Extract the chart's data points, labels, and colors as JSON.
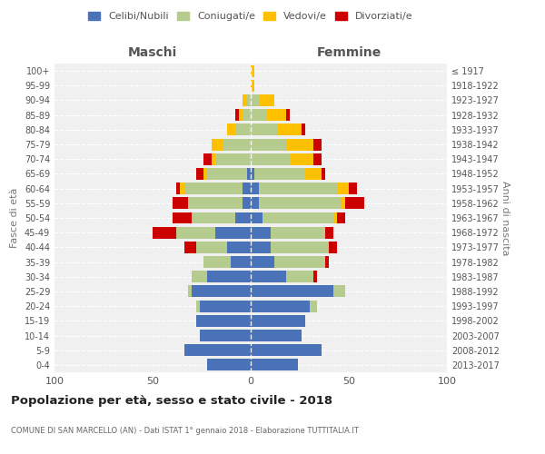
{
  "age_groups": [
    "0-4",
    "5-9",
    "10-14",
    "15-19",
    "20-24",
    "25-29",
    "30-34",
    "35-39",
    "40-44",
    "45-49",
    "50-54",
    "55-59",
    "60-64",
    "65-69",
    "70-74",
    "75-79",
    "80-84",
    "85-89",
    "90-94",
    "95-99",
    "100+"
  ],
  "birth_years": [
    "2013-2017",
    "2008-2012",
    "2003-2007",
    "1998-2002",
    "1993-1997",
    "1988-1992",
    "1983-1987",
    "1978-1982",
    "1973-1977",
    "1968-1972",
    "1963-1967",
    "1958-1962",
    "1953-1957",
    "1948-1952",
    "1943-1947",
    "1938-1942",
    "1933-1937",
    "1928-1932",
    "1923-1927",
    "1918-1922",
    "≤ 1917"
  ],
  "maschi": {
    "celibi": [
      22,
      34,
      26,
      28,
      26,
      30,
      22,
      10,
      12,
      18,
      8,
      4,
      4,
      2,
      0,
      0,
      0,
      0,
      0,
      0,
      0
    ],
    "coniugati": [
      0,
      0,
      0,
      0,
      2,
      2,
      8,
      14,
      16,
      20,
      22,
      28,
      30,
      20,
      18,
      14,
      8,
      4,
      2,
      0,
      0
    ],
    "vedovi": [
      0,
      0,
      0,
      0,
      0,
      0,
      0,
      0,
      0,
      0,
      0,
      0,
      2,
      2,
      2,
      6,
      4,
      2,
      2,
      0,
      0
    ],
    "divorziati": [
      0,
      0,
      0,
      0,
      0,
      0,
      0,
      0,
      6,
      12,
      10,
      8,
      2,
      4,
      4,
      0,
      0,
      2,
      0,
      0,
      0
    ]
  },
  "femmine": {
    "nubili": [
      24,
      36,
      26,
      28,
      30,
      42,
      18,
      12,
      10,
      10,
      6,
      4,
      4,
      2,
      0,
      0,
      0,
      0,
      0,
      0,
      0
    ],
    "coniugate": [
      0,
      0,
      0,
      0,
      4,
      6,
      14,
      26,
      30,
      28,
      36,
      42,
      40,
      26,
      20,
      18,
      14,
      8,
      4,
      0,
      0
    ],
    "vedove": [
      0,
      0,
      0,
      0,
      0,
      0,
      0,
      0,
      0,
      0,
      2,
      2,
      6,
      8,
      12,
      14,
      12,
      10,
      8,
      2,
      2
    ],
    "divorziate": [
      0,
      0,
      0,
      0,
      0,
      0,
      2,
      2,
      4,
      4,
      4,
      10,
      4,
      2,
      4,
      4,
      2,
      2,
      0,
      0,
      0
    ]
  },
  "colors": {
    "celibi": "#4a72b8",
    "coniugati": "#b5cc8e",
    "vedovi": "#ffc000",
    "divorziati": "#cc0000"
  },
  "title": "Popolazione per età, sesso e stato civile - 2018",
  "subtitle": "COMUNE DI SAN MARCELLO (AN) - Dati ISTAT 1° gennaio 2018 - Elaborazione TUTTITALIA.IT",
  "xlabel_left": "Maschi",
  "xlabel_right": "Femmine",
  "ylabel_left": "Fasce di età",
  "ylabel_right": "Anni di nascita",
  "xlim": 100,
  "bg_color": "#f0f0f0",
  "grid_color": "#cccccc",
  "legend_labels": [
    "Celibi/Nubili",
    "Coniugati/e",
    "Vedovi/e",
    "Divorziati/e"
  ]
}
